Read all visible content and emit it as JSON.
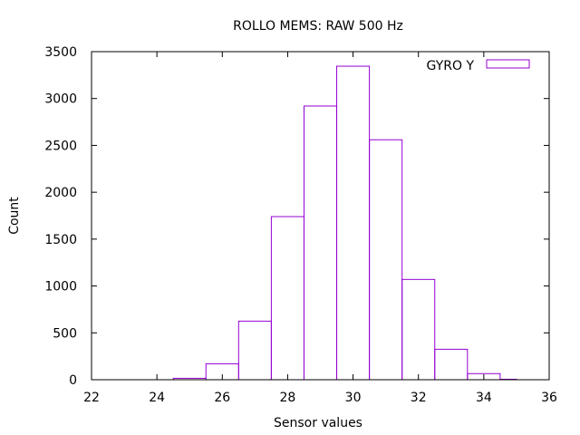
{
  "chart_data": {
    "type": "bar",
    "title": "ROLLO MEMS: RAW 500 Hz",
    "xlabel": "Sensor values",
    "ylabel": "Count",
    "xlim": [
      22,
      36
    ],
    "ylim": [
      0,
      3500
    ],
    "xticks": [
      22,
      24,
      26,
      28,
      30,
      32,
      34,
      36
    ],
    "yticks": [
      0,
      500,
      1000,
      1500,
      2000,
      2500,
      3000,
      3500
    ],
    "legend_position": "top-right",
    "grid": false,
    "series": [
      {
        "name": "GYRO Y",
        "color": "#9400d3",
        "bins": [
          {
            "x0": 24.5,
            "x1": 25.5,
            "value": 15
          },
          {
            "x0": 25.5,
            "x1": 26.5,
            "value": 170
          },
          {
            "x0": 26.5,
            "x1": 27.5,
            "value": 625
          },
          {
            "x0": 27.5,
            "x1": 28.5,
            "value": 1740
          },
          {
            "x0": 28.5,
            "x1": 29.5,
            "value": 2920
          },
          {
            "x0": 29.5,
            "x1": 30.5,
            "value": 3345
          },
          {
            "x0": 30.5,
            "x1": 31.5,
            "value": 2560
          },
          {
            "x0": 31.5,
            "x1": 32.5,
            "value": 1070
          },
          {
            "x0": 32.5,
            "x1": 33.5,
            "value": 325
          },
          {
            "x0": 33.5,
            "x1": 34.5,
            "value": 65
          },
          {
            "x0": 34.5,
            "x1": 35.0,
            "value": 5
          }
        ]
      }
    ]
  }
}
